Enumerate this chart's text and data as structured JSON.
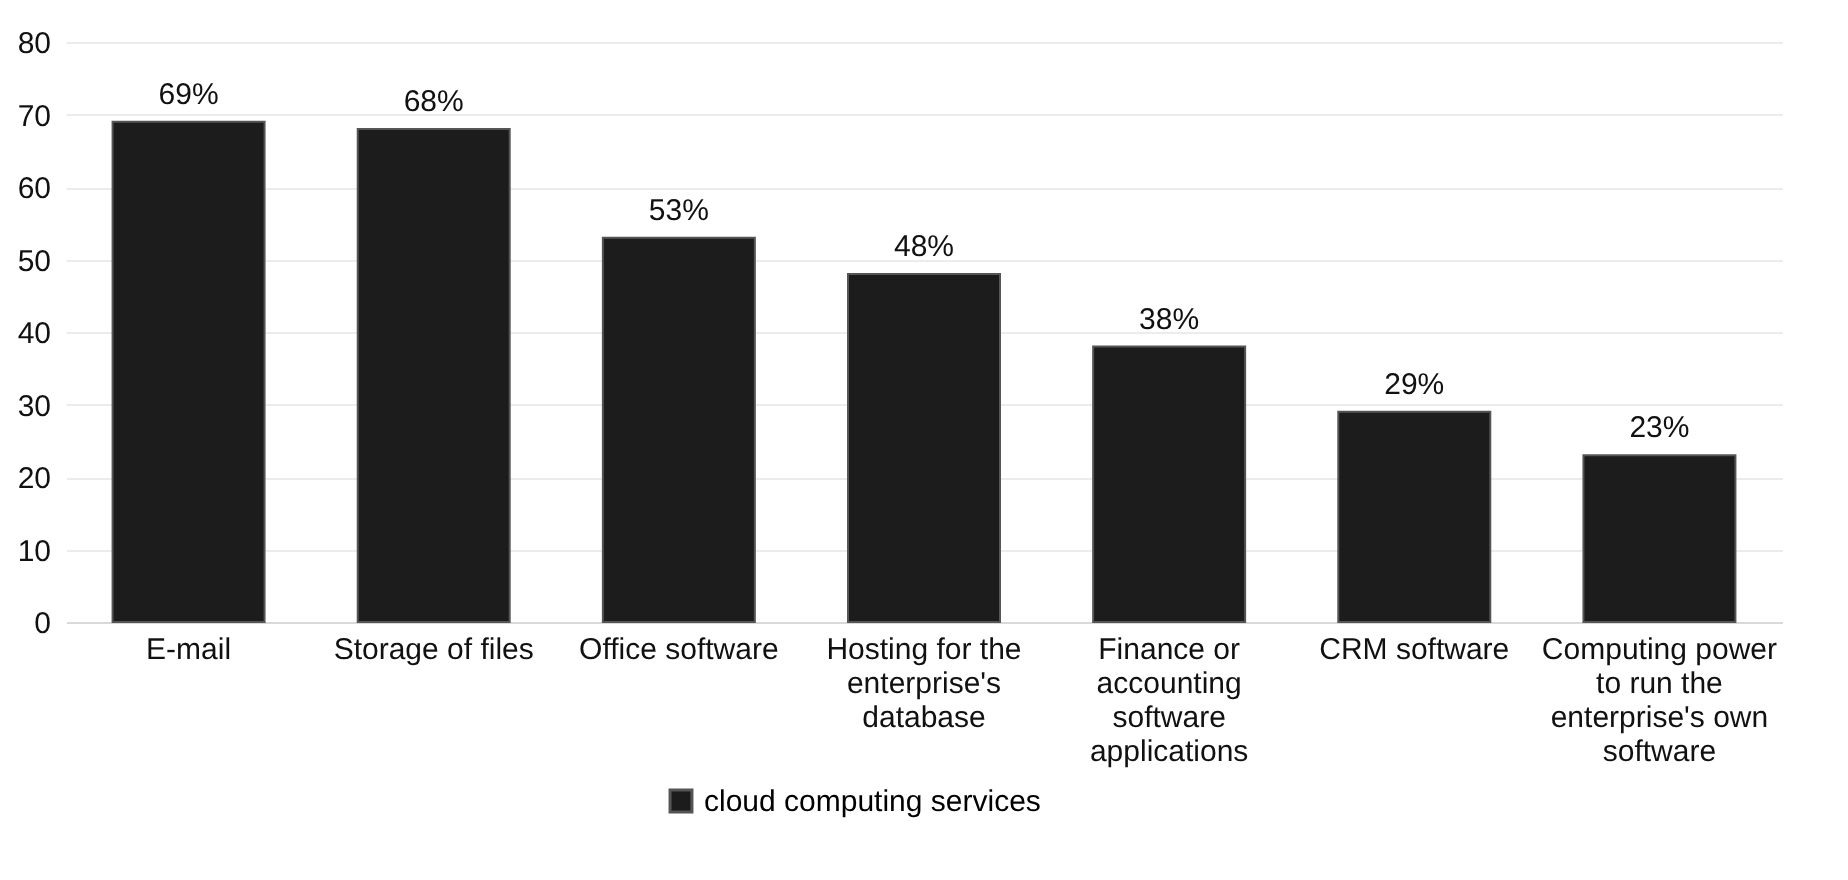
{
  "chart_data": {
    "type": "bar",
    "categories": [
      "E-mail",
      "Storage of files",
      "Office software",
      "Hosting for the enterprise's database",
      "Finance or accounting software applications",
      "CRM software",
      "Computing power to run the enterprise's own software"
    ],
    "series": [
      {
        "name": "cloud computing services",
        "color": "#1c1c1c",
        "values": [
          69,
          68,
          53,
          48,
          38,
          29,
          23
        ],
        "value_labels": [
          "69%",
          "68%",
          "53%",
          "48%",
          "38%",
          "29%",
          "23%"
        ]
      }
    ],
    "ylim": [
      0,
      80
    ],
    "yticks": [
      0,
      10,
      20,
      30,
      40,
      50,
      60,
      70,
      80
    ],
    "grid": "y",
    "legend": "bottom"
  }
}
